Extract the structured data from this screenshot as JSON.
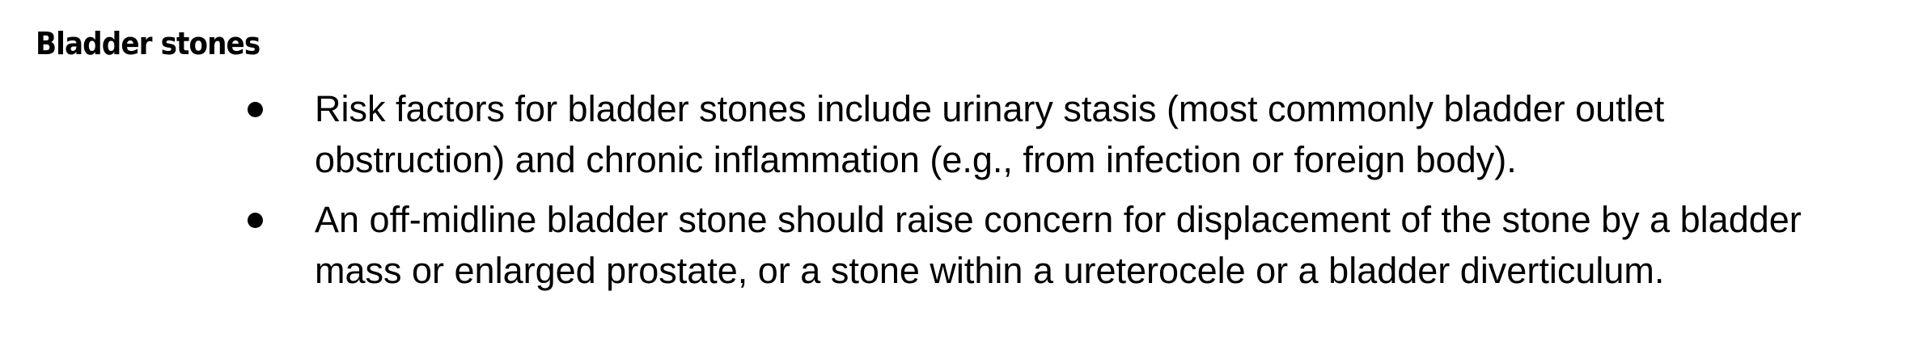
{
  "section": {
    "heading": "Bladder stones",
    "bullets": [
      "Risk factors for bladder stones include urinary stasis (most commonly bladder outlet obstruction) and chronic inflammation (e.g., from infection or foreign body).",
      "An off-midline bladder stone should raise concern for displacement of the stone by a bladder mass or enlarged prostate, or a stone within a ureterocele or a bladder diverticulum."
    ]
  }
}
